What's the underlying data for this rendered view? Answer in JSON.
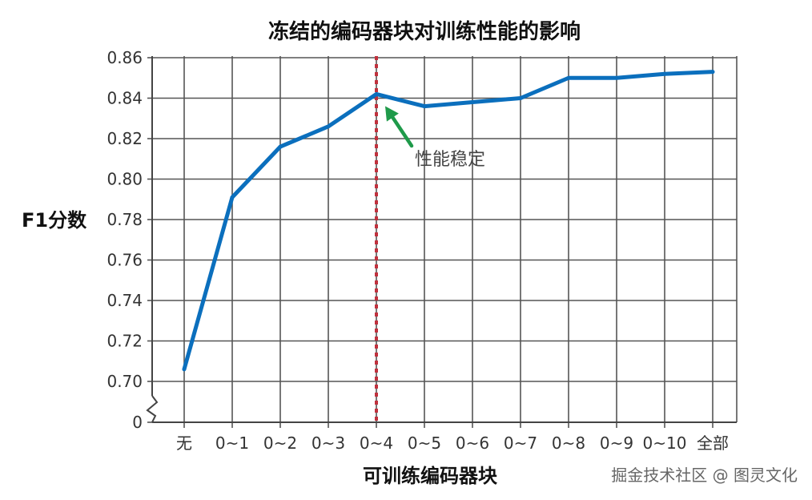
{
  "chart_data": {
    "type": "line",
    "title": "冻结的编码器块对训练性能的影响",
    "xlabel": "可训练编码器块",
    "ylabel": "F1分数",
    "categories": [
      "无",
      "0~1",
      "0~2",
      "0~3",
      "0~4",
      "0~5",
      "0~6",
      "0~7",
      "0~8",
      "0~9",
      "0~10",
      "全部"
    ],
    "series": [
      {
        "values": [
          0.706,
          0.791,
          0.816,
          0.826,
          0.842,
          0.836,
          0.838,
          0.84,
          0.85,
          0.85,
          0.852,
          0.853
        ]
      }
    ],
    "yticks": [
      "0",
      "0.70",
      "0.72",
      "0.74",
      "0.76",
      "0.78",
      "0.80",
      "0.82",
      "0.84",
      "0.86"
    ],
    "ylim": [
      0.7,
      0.86
    ],
    "y_axis_break": true,
    "grid": true,
    "reference_line": {
      "category": "0~4",
      "style": "dotted",
      "color": "#c0313d"
    },
    "annotation": {
      "text": "性能稳定",
      "target_category": "0~4",
      "arrow_color": "#1f9a4a"
    },
    "line_color": "#0b6fbd"
  },
  "watermark": "掘金技术社区 @ 图灵文化"
}
